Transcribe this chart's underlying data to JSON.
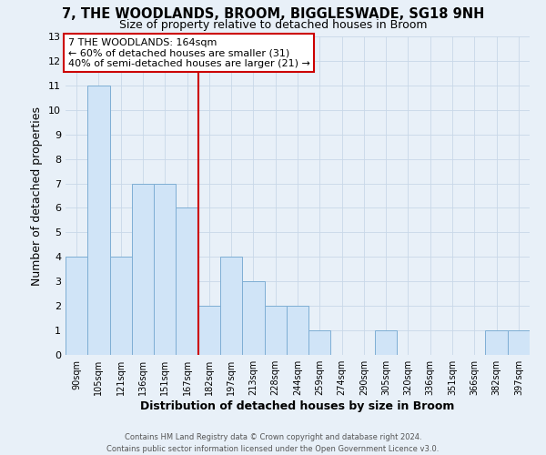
{
  "title1": "7, THE WOODLANDS, BROOM, BIGGLESWADE, SG18 9NH",
  "title2": "Size of property relative to detached houses in Broom",
  "xlabel": "Distribution of detached houses by size in Broom",
  "ylabel": "Number of detached properties",
  "categories": [
    "90sqm",
    "105sqm",
    "121sqm",
    "136sqm",
    "151sqm",
    "167sqm",
    "182sqm",
    "197sqm",
    "213sqm",
    "228sqm",
    "244sqm",
    "259sqm",
    "274sqm",
    "290sqm",
    "305sqm",
    "320sqm",
    "336sqm",
    "351sqm",
    "366sqm",
    "382sqm",
    "397sqm"
  ],
  "values": [
    4,
    11,
    4,
    7,
    7,
    6,
    2,
    4,
    3,
    2,
    2,
    1,
    0,
    0,
    1,
    0,
    0,
    0,
    0,
    1,
    1
  ],
  "bar_color": "#d0e4f7",
  "bar_edge_color": "#7eaed4",
  "red_line_index": 5,
  "annotation_text_line1": "7 THE WOODLANDS: 164sqm",
  "annotation_text_line2": "← 60% of detached houses are smaller (31)",
  "annotation_text_line3": "40% of semi-detached houses are larger (21) →",
  "annotation_box_facecolor": "#ffffff",
  "annotation_box_edgecolor": "#cc0000",
  "red_line_color": "#cc0000",
  "ylim_max": 13,
  "yticks": [
    0,
    1,
    2,
    3,
    4,
    5,
    6,
    7,
    8,
    9,
    10,
    11,
    12,
    13
  ],
  "footer_line1": "Contains HM Land Registry data © Crown copyright and database right 2024.",
  "footer_line2": "Contains public sector information licensed under the Open Government Licence v3.0.",
  "bg_color": "#e8f0f8",
  "grid_color": "#c8d8e8",
  "title1_fontsize": 10.5,
  "title2_fontsize": 9,
  "axis_label_fontsize": 9,
  "tick_fontsize": 8,
  "footer_fontsize": 6,
  "ann_fontsize": 8
}
